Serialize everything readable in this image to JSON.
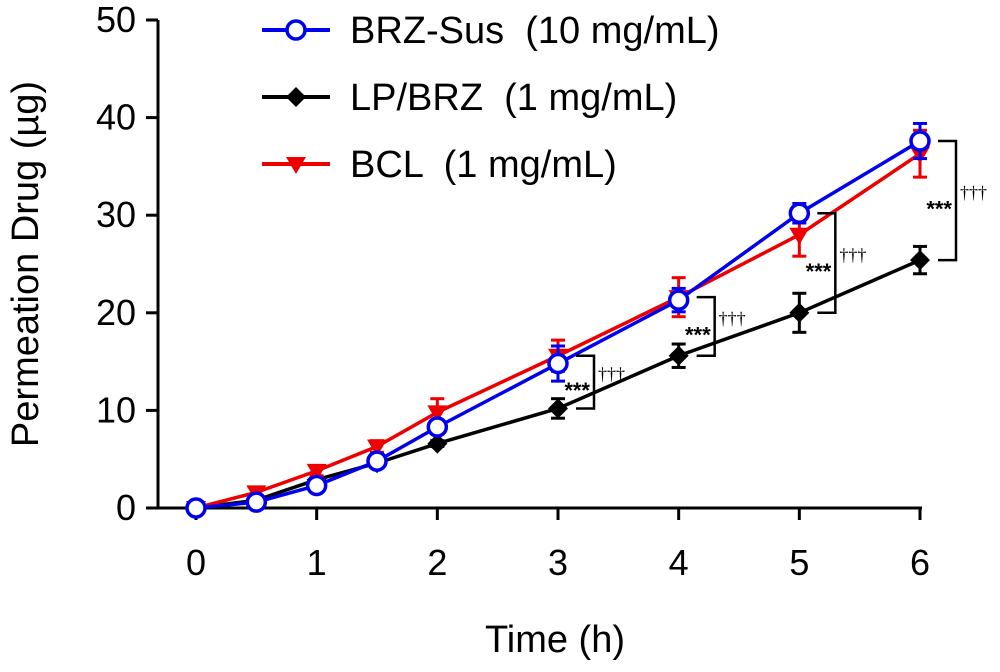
{
  "chart_data": {
    "type": "line",
    "title": "",
    "xlabel": "Time (h)",
    "ylabel": "Permeation Drug (µg)",
    "xlim": [
      0,
      6
    ],
    "ylim": [
      0,
      50
    ],
    "x_ticks": [
      "0",
      "1",
      "2",
      "3",
      "4",
      "5",
      "6"
    ],
    "y_ticks": [
      "0",
      "10",
      "20",
      "30",
      "40",
      "50"
    ],
    "legend_position": "top-left",
    "series": [
      {
        "name": "BRZ-Sus  (10 mg/mL)",
        "color": "#0000ee",
        "marker": "open-circle",
        "x": [
          0,
          0.5,
          1,
          1.5,
          2,
          3,
          4,
          5,
          6
        ],
        "values": [
          0,
          0.6,
          2.3,
          4.8,
          8.3,
          14.8,
          21.3,
          30.2,
          37.6
        ],
        "errors": [
          0,
          0.3,
          0.6,
          0.6,
          0.7,
          1.8,
          1.2,
          1.0,
          1.8
        ]
      },
      {
        "name": "LP/BRZ  (1 mg/mL)",
        "color": "#000000",
        "marker": "filled-diamond",
        "x": [
          0,
          0.5,
          1,
          1.5,
          2,
          3,
          4,
          5,
          6
        ],
        "values": [
          0,
          0.8,
          2.9,
          4.6,
          6.6,
          10.2,
          15.6,
          20.0,
          25.4
        ],
        "errors": [
          0,
          0.2,
          0.3,
          0.3,
          0.3,
          1.0,
          1.2,
          2.0,
          1.4
        ]
      },
      {
        "name": "BCL  (1 mg/mL)",
        "color": "#ee0000",
        "marker": "filled-triangle-down",
        "x": [
          0,
          0.5,
          1,
          1.5,
          2,
          3,
          4,
          5,
          6
        ],
        "values": [
          0,
          1.6,
          3.8,
          6.3,
          9.8,
          15.6,
          21.6,
          28.0,
          36.3
        ],
        "errors": [
          0,
          0.4,
          0.5,
          0.6,
          1.4,
          1.6,
          2.0,
          2.2,
          2.4
        ]
      }
    ],
    "annotations": [
      {
        "x": 3,
        "top": 15.6,
        "bottom": 10.2,
        "stars": "***",
        "daggers": "†††"
      },
      {
        "x": 4,
        "top": 21.6,
        "bottom": 15.6,
        "stars": "***",
        "daggers": "†††"
      },
      {
        "x": 5,
        "top": 30.2,
        "bottom": 20.0,
        "stars": "***",
        "daggers": "†††"
      },
      {
        "x": 6,
        "top": 37.6,
        "bottom": 25.4,
        "stars": "***",
        "daggers": "†††"
      }
    ]
  }
}
